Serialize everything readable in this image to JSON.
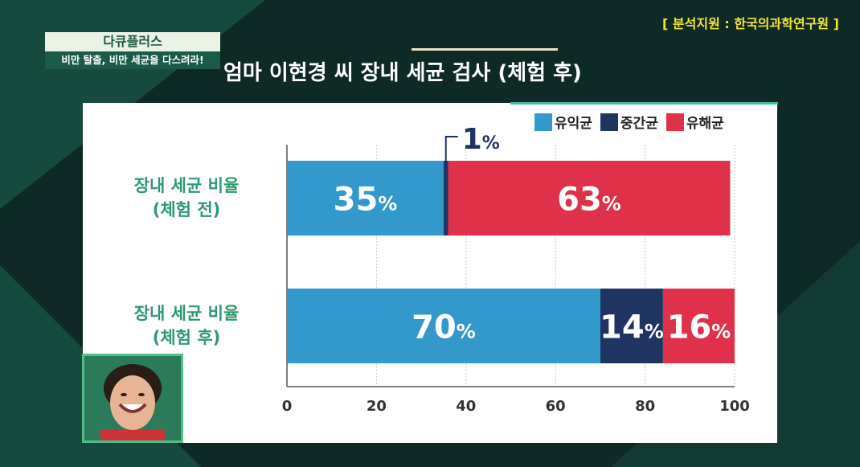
{
  "source_note": "[ 분석지원 : 한국의과학연구원 ]",
  "program": {
    "name": "다큐플러스",
    "subtitle": "비만 탈출, 비만 세균을 다스려라!"
  },
  "screen_title": "엄마 이현경 씨 장내 세균 검사 (체험 후)",
  "colors": {
    "beneficial": "#3399cc",
    "intermediate": "#1e3461",
    "harmful": "#e0314a",
    "label_green": "#2c9a70"
  },
  "chart_data": {
    "type": "bar",
    "orientation": "horizontal-stacked",
    "categories": [
      [
        "장내 세균 비율",
        "(체험 전)"
      ],
      [
        "장내 세균 비율",
        "(체험 후)"
      ]
    ],
    "series": [
      {
        "name": "유익균",
        "values": [
          35,
          70
        ],
        "color_key": "beneficial"
      },
      {
        "name": "중간균",
        "values": [
          1,
          14
        ],
        "color_key": "intermediate"
      },
      {
        "name": "유해균",
        "values": [
          63,
          16
        ],
        "color_key": "harmful"
      }
    ],
    "data_labels": [
      [
        "35",
        "1",
        "63"
      ],
      [
        "70",
        "14",
        "16"
      ]
    ],
    "label_unit": "%",
    "xlim": [
      0,
      100
    ],
    "x_ticks": [
      "0",
      "20",
      "40",
      "60",
      "80",
      "100"
    ],
    "grid": true,
    "legend_position": "top-right"
  }
}
